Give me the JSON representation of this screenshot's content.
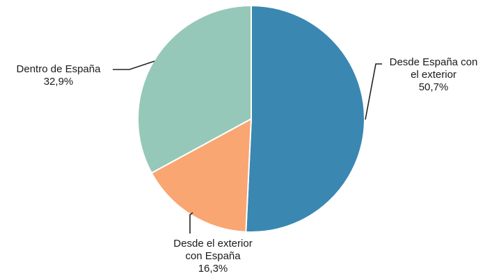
{
  "chart_data": {
    "type": "pie",
    "slices": [
      {
        "label_lines": [
          "Desde España con",
          "el exterior"
        ],
        "value": 50.7,
        "value_label": "50,7%",
        "color": "#3a87b2"
      },
      {
        "label_lines": [
          "Desde el exterior",
          "con España"
        ],
        "value": 16.3,
        "value_label": "16,3%",
        "color": "#f9a672"
      },
      {
        "label_lines": [
          "Dentro de España"
        ],
        "value": 32.9,
        "value_label": "32,9%",
        "color": "#95c8b8"
      }
    ],
    "start_angle": "12 o'clock",
    "direction": "clockwise",
    "legend": "none",
    "labels": "outside with leader lines"
  }
}
